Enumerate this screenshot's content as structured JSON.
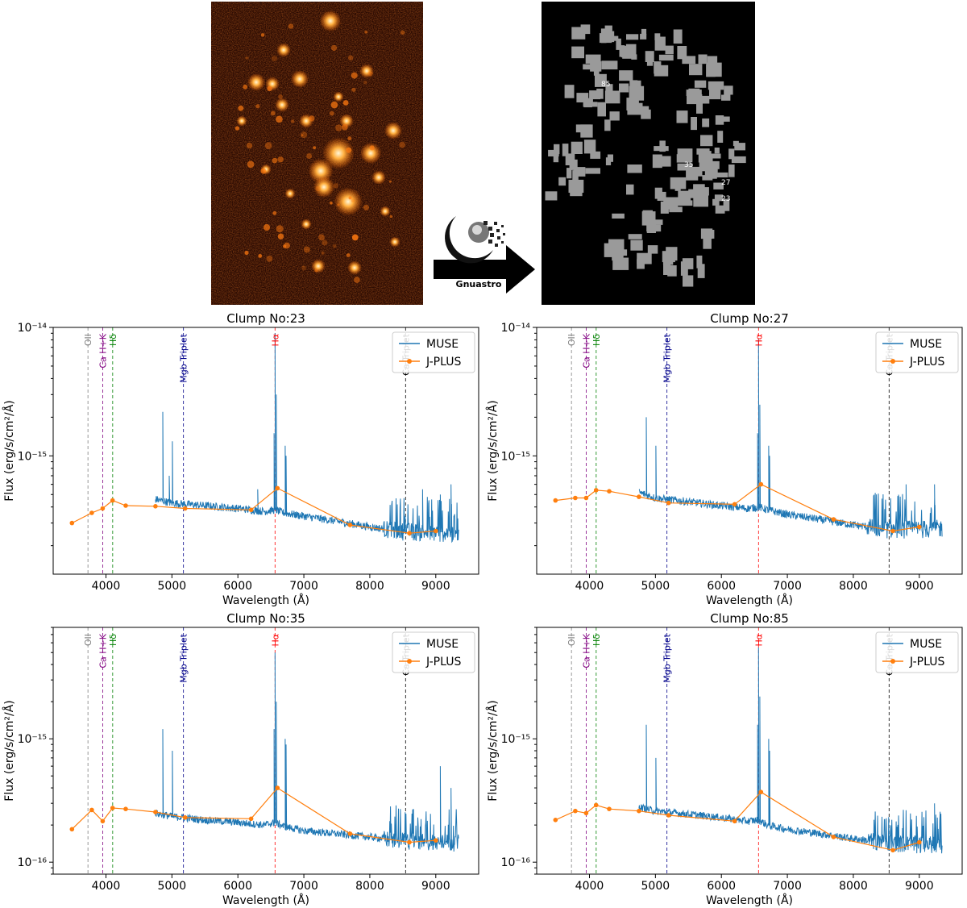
{
  "flow": {
    "arrow_label": "Gnuastro",
    "segmap_labels": [
      "85",
      "35",
      "27",
      "23"
    ]
  },
  "line_markers": [
    {
      "label": "OII",
      "wavelength": 3727,
      "color": "#808080"
    },
    {
      "label": "Ca H+K",
      "wavelength": 3950,
      "color": "#800080"
    },
    {
      "label": "Hδ",
      "wavelength": 4102,
      "color": "#008000"
    },
    {
      "label": "Mgb Triplet",
      "wavelength": 5175,
      "color": "#00008b"
    },
    {
      "label": "Hα",
      "wavelength": 6563,
      "color": "#ff0000"
    },
    {
      "label": "Ca Triplet",
      "wavelength": 8542,
      "color": "#000000"
    }
  ],
  "colors": {
    "muse": "#1f77b4",
    "jplus": "#ff7f0e",
    "marker_dash": "4,3"
  },
  "chart_data": [
    {
      "type": "line",
      "title": "Clump No:23",
      "xlabel": "Wavelength (Å)",
      "ylabel": "Flux (erg/s/cm²/Å)",
      "xlim": [
        3200,
        9650
      ],
      "ylim": [
        1.2e-16,
        1e-14
      ],
      "yscale": "log",
      "xticks": [
        4000,
        5000,
        6000,
        7000,
        8000,
        9000
      ],
      "yticks": [
        {
          "value": 1e-14,
          "label": "10⁻¹⁴"
        },
        {
          "value": 1e-15,
          "label": "10⁻¹⁵"
        }
      ],
      "legend": "top-right",
      "series": [
        {
          "name": "MUSE",
          "x": [
            4750,
            5000,
            5500,
            6000,
            6400,
            6560,
            6700,
            7000,
            7500,
            8000,
            8500,
            9000,
            9350
          ],
          "y": [
            4.6e-16,
            4.3e-16,
            4.1e-16,
            3.9e-16,
            3.7e-16,
            3.8e-16,
            3.6e-16,
            3.4e-16,
            3.1e-16,
            2.8e-16,
            2.6e-16,
            2.55e-16,
            2.5e-16
          ],
          "peaks": [
            [
              4861,
              2.2e-15
            ],
            [
              4959,
              7e-16
            ],
            [
              5007,
              1.3e-15
            ],
            [
              6300,
              5.5e-16
            ],
            [
              6548,
              1.5e-15
            ],
            [
              6563,
              9e-15
            ],
            [
              6583,
              3e-15
            ],
            [
              6717,
              1.2e-15
            ],
            [
              6731,
              1e-15
            ],
            [
              8800,
              5.5e-16
            ],
            [
              9069,
              5e-16
            ],
            [
              9231,
              6e-16
            ]
          ]
        },
        {
          "name": "J-PLUS",
          "x": [
            3485,
            3785,
            3950,
            4100,
            4300,
            4750,
            5200,
            6200,
            6600,
            7700,
            8600,
            9000
          ],
          "y": [
            3e-16,
            3.6e-16,
            3.9e-16,
            4.5e-16,
            4.1e-16,
            4.05e-16,
            3.9e-16,
            3.8e-16,
            5.6e-16,
            2.9e-16,
            2.5e-16,
            2.6e-16
          ]
        }
      ]
    },
    {
      "type": "line",
      "title": "Clump No:27",
      "xlabel": "Wavelength (Å)",
      "ylabel": "Flux (erg/s/cm²/Å)",
      "xlim": [
        3200,
        9650
      ],
      "ylim": [
        1.2e-16,
        1e-14
      ],
      "yscale": "log",
      "xticks": [
        4000,
        5000,
        6000,
        7000,
        8000,
        9000
      ],
      "yticks": [
        {
          "value": 1e-14,
          "label": "10⁻¹⁴"
        },
        {
          "value": 1e-15,
          "label": "10⁻¹⁵"
        }
      ],
      "legend": "top-right",
      "series": [
        {
          "name": "MUSE",
          "x": [
            4750,
            5000,
            5500,
            6000,
            6400,
            6560,
            6700,
            7000,
            7500,
            8000,
            8500,
            9000,
            9350
          ],
          "y": [
            5.2e-16,
            4.7e-16,
            4.4e-16,
            4.1e-16,
            3.9e-16,
            4e-16,
            3.8e-16,
            3.5e-16,
            3.2e-16,
            2.9e-16,
            2.7e-16,
            2.7e-16,
            2.75e-16
          ],
          "peaks": [
            [
              4861,
              2e-15
            ],
            [
              5007,
              1.2e-15
            ],
            [
              6548,
              1.5e-15
            ],
            [
              6563,
              8e-15
            ],
            [
              6583,
              2.5e-15
            ],
            [
              6717,
              1.2e-15
            ],
            [
              6731,
              1e-15
            ],
            [
              8800,
              6e-16
            ],
            [
              9231,
              6e-16
            ]
          ]
        },
        {
          "name": "J-PLUS",
          "x": [
            3485,
            3785,
            3950,
            4100,
            4300,
            4750,
            5200,
            6200,
            6600,
            7700,
            8600,
            9000
          ],
          "y": [
            4.5e-16,
            4.7e-16,
            4.7e-16,
            5.4e-16,
            5.3e-16,
            4.8e-16,
            4.3e-16,
            4.2e-16,
            6e-16,
            3.2e-16,
            2.6e-16,
            2.8e-16
          ]
        }
      ]
    },
    {
      "type": "line",
      "title": "Clump No:35",
      "xlabel": "Wavelength (Å)",
      "ylabel": "Flux (erg/s/cm²/Å)",
      "xlim": [
        3200,
        9650
      ],
      "ylim": [
        8e-17,
        8e-15
      ],
      "yscale": "log",
      "xticks": [
        4000,
        5000,
        6000,
        7000,
        8000,
        9000
      ],
      "yticks": [
        {
          "value": 1e-15,
          "label": "10⁻¹⁵"
        },
        {
          "value": 1e-16,
          "label": "10⁻¹⁶"
        }
      ],
      "legend": "top-right",
      "series": [
        {
          "name": "MUSE",
          "x": [
            4750,
            5000,
            5500,
            6000,
            6400,
            6560,
            6700,
            7000,
            7500,
            8000,
            8500,
            9000,
            9350
          ],
          "y": [
            2.5e-16,
            2.35e-16,
            2.2e-16,
            2.1e-16,
            2e-16,
            2.1e-16,
            1.95e-16,
            1.8e-16,
            1.7e-16,
            1.6e-16,
            1.5e-16,
            1.45e-16,
            1.45e-16
          ],
          "peaks": [
            [
              4861,
              1.2e-15
            ],
            [
              5007,
              8e-16
            ],
            [
              6548,
              1.2e-15
            ],
            [
              6563,
              5e-15
            ],
            [
              6583,
              2e-15
            ],
            [
              6717,
              1e-15
            ],
            [
              6731,
              9e-16
            ],
            [
              9069,
              6e-16
            ],
            [
              9231,
              4e-16
            ]
          ]
        },
        {
          "name": "J-PLUS",
          "x": [
            3485,
            3785,
            3950,
            4100,
            4300,
            4750,
            5200,
            6200,
            6600,
            7700,
            8600,
            9000
          ],
          "y": [
            1.85e-16,
            2.65e-16,
            2.15e-16,
            2.75e-16,
            2.7e-16,
            2.55e-16,
            2.3e-16,
            2.25e-16,
            4e-16,
            1.7e-16,
            1.45e-16,
            1.5e-16
          ]
        }
      ]
    },
    {
      "type": "line",
      "title": "Clump No:85",
      "xlabel": "Wavelength (Å)",
      "ylabel": "Flux (erg/s/cm²/Å)",
      "xlim": [
        3200,
        9650
      ],
      "ylim": [
        8e-17,
        8e-15
      ],
      "yscale": "log",
      "xticks": [
        4000,
        5000,
        6000,
        7000,
        8000,
        9000
      ],
      "yticks": [
        {
          "value": 1e-15,
          "label": "10⁻¹⁵"
        },
        {
          "value": 1e-16,
          "label": "10⁻¹⁶"
        }
      ],
      "legend": "top-right",
      "series": [
        {
          "name": "MUSE",
          "x": [
            4750,
            5000,
            5500,
            6000,
            6400,
            6560,
            6700,
            7000,
            7500,
            8000,
            8500,
            9000,
            9350
          ],
          "y": [
            2.8e-16,
            2.6e-16,
            2.45e-16,
            2.3e-16,
            2.15e-16,
            2.2e-16,
            2e-16,
            1.85e-16,
            1.7e-16,
            1.55e-16,
            1.45e-16,
            1.4e-16,
            1.4e-16
          ],
          "peaks": [
            [
              4861,
              1.3e-15
            ],
            [
              5007,
              7e-16
            ],
            [
              6548,
              1.3e-15
            ],
            [
              6563,
              5.5e-15
            ],
            [
              6583,
              2.2e-15
            ],
            [
              6717,
              1e-15
            ],
            [
              6731,
              8e-16
            ],
            [
              9231,
              3e-16
            ]
          ]
        },
        {
          "name": "J-PLUS",
          "x": [
            3485,
            3785,
            3950,
            4100,
            4300,
            4750,
            5200,
            6200,
            6600,
            7700,
            8600,
            9000
          ],
          "y": [
            2.2e-16,
            2.6e-16,
            2.5e-16,
            2.9e-16,
            2.7e-16,
            2.6e-16,
            2.4e-16,
            2.15e-16,
            3.7e-16,
            1.6e-16,
            1.25e-16,
            1.45e-16
          ]
        }
      ]
    }
  ]
}
